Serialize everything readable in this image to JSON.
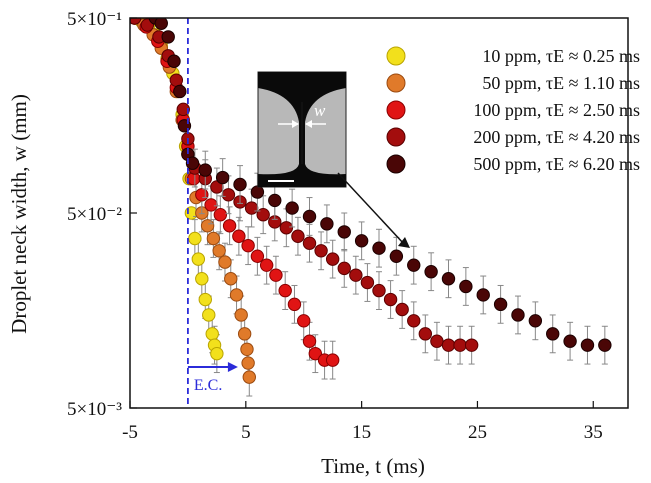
{
  "chart_data": {
    "type": "scatter",
    "title": "",
    "xlabel": "Time, t (ms)",
    "ylabel": "Droplet neck width, w (mm)",
    "xlim": [
      -5,
      38
    ],
    "ylim": [
      0.005,
      0.5
    ],
    "yscale": "log",
    "xticks": [
      -5,
      5,
      15,
      25,
      35
    ],
    "xtick_labels": [
      "-5",
      "5",
      "15",
      "25",
      "35"
    ],
    "ytick_labels": [
      {
        "value": 0.5,
        "label": "5×10⁻¹"
      },
      {
        "value": 0.05,
        "label": "5×10⁻²"
      },
      {
        "value": 0.005,
        "label": "5×10⁻³"
      }
    ],
    "legend_position": "top-right",
    "vline": {
      "x": 0,
      "label": "E.C.",
      "color": "#2b2bd9"
    },
    "inset_label": "w",
    "series": [
      {
        "name": "10 ppm, τE ≈ 0.25 ms",
        "color": "#f2e01c",
        "edge": "#b9a400",
        "points": [
          [
            -4.6,
            0.5
          ],
          [
            -4,
            0.48
          ],
          [
            -3.4,
            0.45
          ],
          [
            -2.8,
            0.41
          ],
          [
            -2.3,
            0.36
          ],
          [
            -1.8,
            0.31
          ],
          [
            -1.3,
            0.26
          ],
          [
            -0.9,
            0.21
          ],
          [
            -0.5,
            0.16
          ],
          [
            -0.2,
            0.11
          ],
          [
            0.1,
            0.075
          ],
          [
            0.3,
            0.05
          ],
          [
            0.6,
            0.037
          ],
          [
            0.9,
            0.029
          ],
          [
            1.2,
            0.023
          ],
          [
            1.5,
            0.018
          ],
          [
            1.8,
            0.015
          ],
          [
            2.1,
            0.012
          ],
          [
            2.3,
            0.0105
          ],
          [
            2.5,
            0.0095
          ]
        ]
      },
      {
        "name": "50 ppm, τE ≈ 1.10 ms",
        "color": "#e07a2a",
        "edge": "#9a4a10",
        "points": [
          [
            -4.6,
            0.5
          ],
          [
            -3.8,
            0.46
          ],
          [
            -3,
            0.41
          ],
          [
            -2.3,
            0.35
          ],
          [
            -1.6,
            0.28
          ],
          [
            -1,
            0.21
          ],
          [
            -0.5,
            0.15
          ],
          [
            0,
            0.1
          ],
          [
            0.3,
            0.075
          ],
          [
            0.7,
            0.06
          ],
          [
            1.2,
            0.05
          ],
          [
            1.7,
            0.043
          ],
          [
            2.2,
            0.037
          ],
          [
            2.7,
            0.032
          ],
          [
            3.2,
            0.028
          ],
          [
            3.7,
            0.023
          ],
          [
            4.2,
            0.019
          ],
          [
            4.6,
            0.015
          ],
          [
            4.9,
            0.012
          ],
          [
            5.1,
            0.01
          ],
          [
            5.2,
            0.0085
          ],
          [
            5.3,
            0.0072
          ]
        ]
      },
      {
        "name": "100 ppm, τE ≈ 2.50 ms",
        "color": "#e01414",
        "edge": "#8a0000",
        "points": [
          [
            -4.6,
            0.5
          ],
          [
            -3.6,
            0.45
          ],
          [
            -2.6,
            0.38
          ],
          [
            -1.8,
            0.3
          ],
          [
            -1,
            0.22
          ],
          [
            -0.4,
            0.15
          ],
          [
            0,
            0.11
          ],
          [
            0.5,
            0.075
          ],
          [
            1.2,
            0.062
          ],
          [
            2,
            0.055
          ],
          [
            2.8,
            0.049
          ],
          [
            3.6,
            0.043
          ],
          [
            4.4,
            0.038
          ],
          [
            5.2,
            0.034
          ],
          [
            6,
            0.03
          ],
          [
            6.8,
            0.027
          ],
          [
            7.6,
            0.024
          ],
          [
            8.4,
            0.02
          ],
          [
            9.2,
            0.017
          ],
          [
            10,
            0.014
          ],
          [
            10.5,
            0.011
          ],
          [
            11,
            0.0095
          ],
          [
            11.8,
            0.0088
          ],
          [
            12.5,
            0.0088
          ]
        ]
      },
      {
        "name": "200 ppm, τE ≈ 4.20 ms",
        "color": "#a30d0d",
        "edge": "#5a0000",
        "points": [
          [
            -4.6,
            0.5
          ],
          [
            -3.5,
            0.46
          ],
          [
            -2.5,
            0.4
          ],
          [
            -1.7,
            0.32
          ],
          [
            -1,
            0.24
          ],
          [
            -0.4,
            0.17
          ],
          [
            0,
            0.12
          ],
          [
            0.6,
            0.085
          ],
          [
            1.5,
            0.075
          ],
          [
            2.5,
            0.068
          ],
          [
            3.5,
            0.062
          ],
          [
            4.5,
            0.057
          ],
          [
            5.5,
            0.053
          ],
          [
            6.5,
            0.049
          ],
          [
            7.5,
            0.045
          ],
          [
            8.5,
            0.042
          ],
          [
            9.5,
            0.038
          ],
          [
            10.5,
            0.035
          ],
          [
            11.5,
            0.032
          ],
          [
            12.5,
            0.029
          ],
          [
            13.5,
            0.026
          ],
          [
            14.5,
            0.024
          ],
          [
            15.5,
            0.022
          ],
          [
            16.5,
            0.02
          ],
          [
            17.5,
            0.018
          ],
          [
            18.5,
            0.016
          ],
          [
            19.5,
            0.014
          ],
          [
            20.5,
            0.012
          ],
          [
            21.5,
            0.011
          ],
          [
            22.5,
            0.0105
          ],
          [
            23.5,
            0.0105
          ],
          [
            24.5,
            0.0105
          ]
        ]
      },
      {
        "name": "500 ppm, τE ≈ 6.20 ms",
        "color": "#4a0606",
        "edge": "#1a0000",
        "points": [
          [
            -2.8,
            0.5
          ],
          [
            -2.3,
            0.47
          ],
          [
            -1.7,
            0.4
          ],
          [
            -1.2,
            0.3
          ],
          [
            -0.7,
            0.21
          ],
          [
            -0.3,
            0.14
          ],
          [
            0,
            0.1
          ],
          [
            0.4,
            0.09
          ],
          [
            1.5,
            0.083
          ],
          [
            3,
            0.076
          ],
          [
            4.5,
            0.07
          ],
          [
            6,
            0.064
          ],
          [
            7.5,
            0.058
          ],
          [
            9,
            0.053
          ],
          [
            10.5,
            0.048
          ],
          [
            12,
            0.044
          ],
          [
            13.5,
            0.04
          ],
          [
            15,
            0.036
          ],
          [
            16.5,
            0.033
          ],
          [
            18,
            0.03
          ],
          [
            19.5,
            0.027
          ],
          [
            21,
            0.025
          ],
          [
            22.5,
            0.023
          ],
          [
            24,
            0.021
          ],
          [
            25.5,
            0.019
          ],
          [
            27,
            0.017
          ],
          [
            28.5,
            0.015
          ],
          [
            30,
            0.014
          ],
          [
            31.5,
            0.012
          ],
          [
            33,
            0.011
          ],
          [
            34.5,
            0.0105
          ],
          [
            36,
            0.0105
          ]
        ]
      }
    ]
  }
}
